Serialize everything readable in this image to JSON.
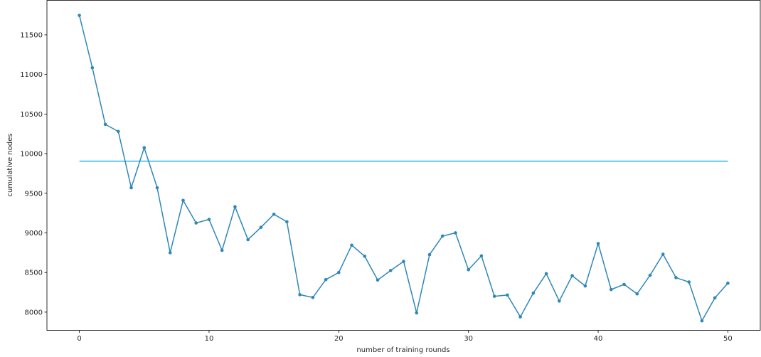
{
  "chart_data": {
    "type": "line",
    "title": "",
    "xlabel": "number of training rounds",
    "ylabel": "cumulative nodes",
    "xlim": [
      -2.5,
      52.5
    ],
    "ylim": [
      7770,
      11935
    ],
    "x_ticks": [
      0,
      10,
      20,
      30,
      40,
      50
    ],
    "y_ticks": [
      8000,
      8500,
      9000,
      9500,
      10000,
      10500,
      11000,
      11500
    ],
    "x_tick_labels": [
      "0",
      "10",
      "20",
      "30",
      "40",
      "50"
    ],
    "y_tick_labels": [
      "8000",
      "8500",
      "9000",
      "9500",
      "10000",
      "10500",
      "11000",
      "11500"
    ],
    "grid": false,
    "legend": "none",
    "series": [
      {
        "color": "#2f87b8",
        "marker": "circle",
        "x": [
          0,
          1,
          2,
          3,
          4,
          5,
          6,
          7,
          8,
          9,
          10,
          11,
          12,
          13,
          14,
          15,
          16,
          17,
          18,
          19,
          20,
          21,
          22,
          23,
          24,
          25,
          26,
          27,
          28,
          29,
          30,
          31,
          32,
          33,
          34,
          35,
          36,
          37,
          38,
          39,
          40,
          41,
          42,
          43,
          44,
          45,
          46,
          47,
          48,
          49,
          50
        ],
        "values": [
          11745,
          11085,
          10370,
          10280,
          9570,
          10075,
          9570,
          8750,
          9410,
          9125,
          9170,
          8780,
          9330,
          8915,
          9070,
          9235,
          9140,
          8220,
          8185,
          8410,
          8500,
          8845,
          8705,
          8405,
          8525,
          8640,
          7990,
          8725,
          8960,
          9000,
          8535,
          8710,
          8200,
          8215,
          7940,
          8240,
          8485,
          8140,
          8460,
          8330,
          8865,
          8285,
          8350,
          8230,
          8465,
          8730,
          8435,
          8380,
          7890,
          8180,
          8365
        ]
      }
    ],
    "reference_line": {
      "value": 9905,
      "x_range": [
        0,
        50
      ],
      "color": "#29b6f6"
    }
  }
}
